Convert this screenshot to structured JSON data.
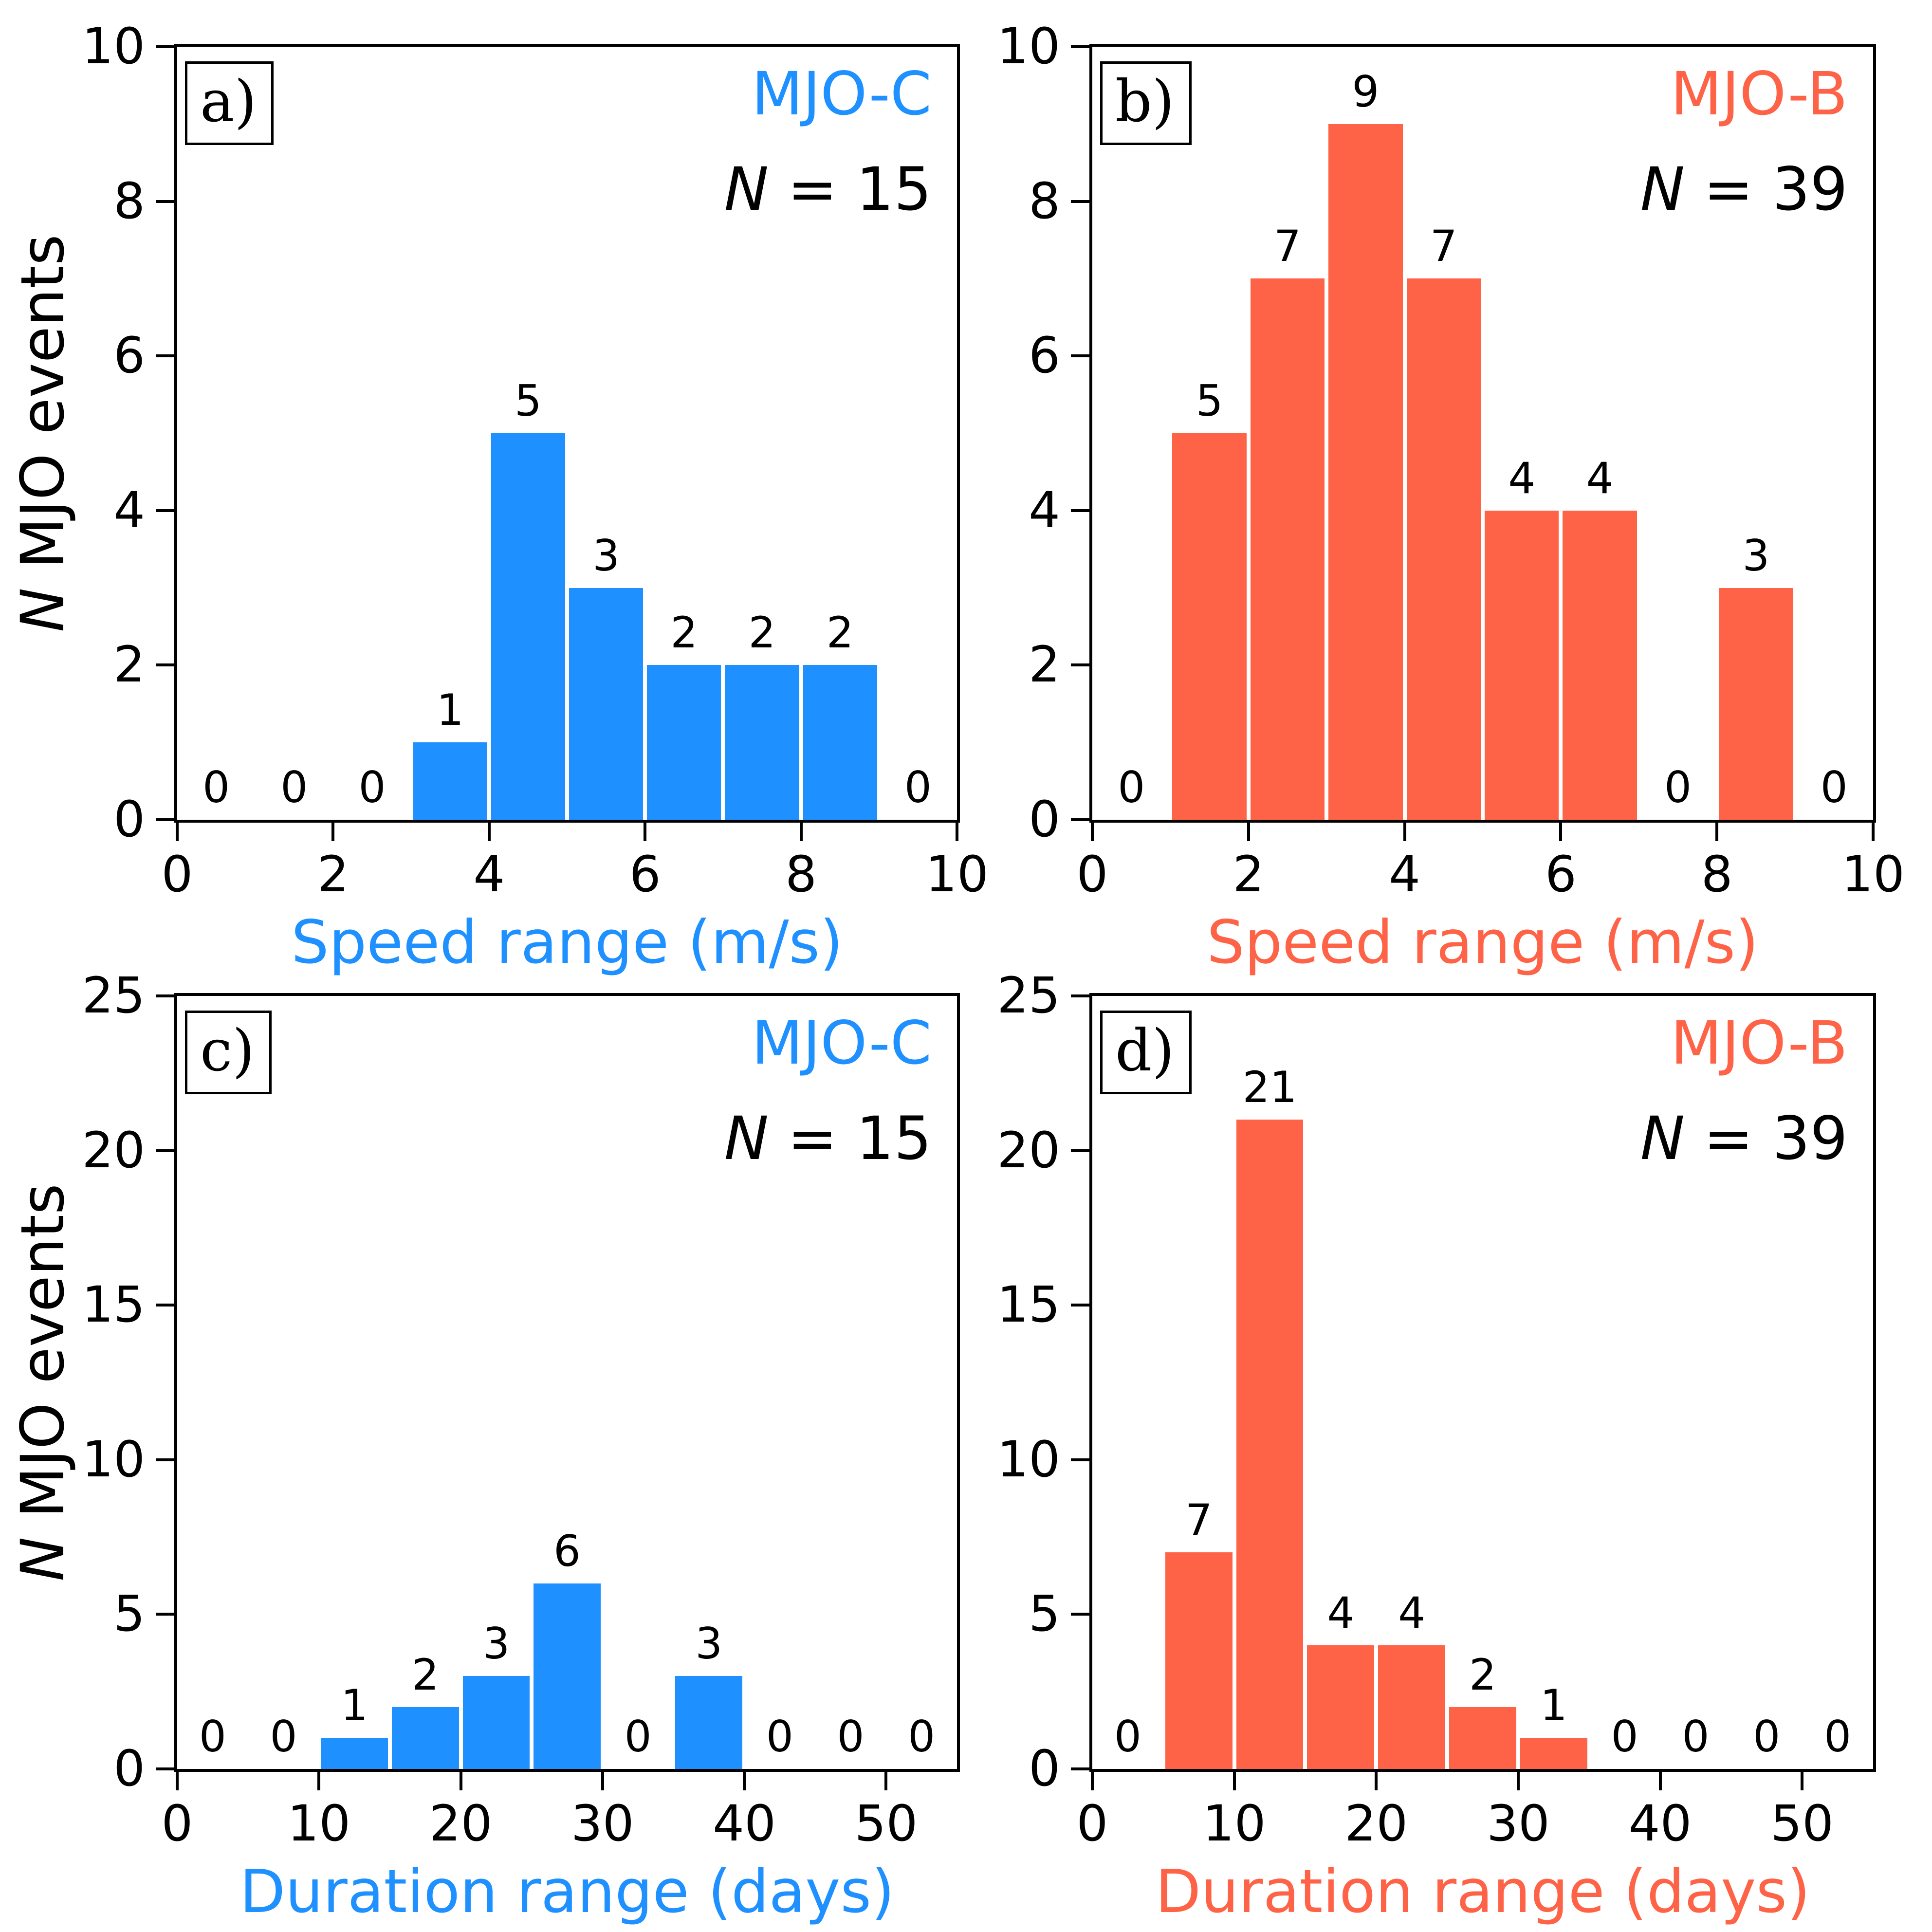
{
  "figure": {
    "background": "#ffffff",
    "axis_color": "#000000",
    "tick_label_color": "#000000",
    "annotation_color": "#000000"
  },
  "chart_data": [
    {
      "type": "bar",
      "subtype": "histogram",
      "panel_letter": "a)",
      "dataset_label": "MJO-C",
      "n_symbol": "N",
      "n_text": " = 15",
      "color": "#1E90FF",
      "xlabel": "Speed range (m/s)",
      "ylabel_symbol": "N",
      "ylabel_text": " MJO events",
      "has_ylabel": true,
      "xlim": [
        0,
        10
      ],
      "ylim": [
        0,
        10
      ],
      "xticks": [
        0,
        2,
        4,
        6,
        8,
        10
      ],
      "yticks": [
        0,
        2,
        4,
        6,
        8,
        10
      ],
      "bin_start": 0,
      "bin_width": 1,
      "bin_edges": [
        0,
        1,
        2,
        3,
        4,
        5,
        6,
        7,
        8,
        9,
        10
      ],
      "values": [
        0,
        0,
        0,
        1,
        5,
        3,
        2,
        2,
        2,
        0
      ],
      "grid": false,
      "legend_position": "top-right"
    },
    {
      "type": "bar",
      "subtype": "histogram",
      "panel_letter": "b)",
      "dataset_label": "MJO-B",
      "n_symbol": "N",
      "n_text": " = 39",
      "color": "#FF6347",
      "xlabel": "Speed range (m/s)",
      "ylabel_symbol": "",
      "ylabel_text": "",
      "has_ylabel": false,
      "xlim": [
        0,
        10
      ],
      "ylim": [
        0,
        10
      ],
      "xticks": [
        0,
        2,
        4,
        6,
        8,
        10
      ],
      "yticks": [
        0,
        2,
        4,
        6,
        8,
        10
      ],
      "bin_start": 0,
      "bin_width": 1,
      "bin_edges": [
        0,
        1,
        2,
        3,
        4,
        5,
        6,
        7,
        8,
        9,
        10
      ],
      "values": [
        0,
        5,
        7,
        9,
        7,
        4,
        4,
        0,
        3,
        0
      ],
      "grid": false,
      "legend_position": "top-right"
    },
    {
      "type": "bar",
      "subtype": "histogram",
      "panel_letter": "c)",
      "dataset_label": "MJO-C",
      "n_symbol": "N",
      "n_text": " = 15",
      "color": "#1E90FF",
      "xlabel": "Duration range (days)",
      "ylabel_symbol": "N",
      "ylabel_text": " MJO events",
      "has_ylabel": true,
      "xlim": [
        0,
        55
      ],
      "ylim": [
        0,
        25
      ],
      "xticks": [
        0,
        10,
        20,
        30,
        40,
        50
      ],
      "yticks": [
        0,
        5,
        10,
        15,
        20,
        25
      ],
      "bin_start": 0,
      "bin_width": 5,
      "bin_edges": [
        0,
        5,
        10,
        15,
        20,
        25,
        30,
        35,
        40,
        45,
        50,
        55
      ],
      "values": [
        0,
        0,
        1,
        2,
        3,
        6,
        0,
        3,
        0,
        0,
        0
      ],
      "grid": false,
      "legend_position": "top-right"
    },
    {
      "type": "bar",
      "subtype": "histogram",
      "panel_letter": "d)",
      "dataset_label": "MJO-B",
      "n_symbol": "N",
      "n_text": " = 39",
      "color": "#FF6347",
      "xlabel": "Duration range (days)",
      "ylabel_symbol": "",
      "ylabel_text": "",
      "has_ylabel": false,
      "xlim": [
        0,
        55
      ],
      "ylim": [
        0,
        25
      ],
      "xticks": [
        0,
        10,
        20,
        30,
        40,
        50
      ],
      "yticks": [
        0,
        5,
        10,
        15,
        20,
        25
      ],
      "bin_start": 0,
      "bin_width": 5,
      "bin_edges": [
        0,
        5,
        10,
        15,
        20,
        25,
        30,
        35,
        40,
        45,
        50,
        55
      ],
      "values": [
        0,
        7,
        21,
        4,
        4,
        2,
        1,
        0,
        0,
        0,
        0
      ],
      "grid": false,
      "legend_position": "top-right"
    }
  ]
}
